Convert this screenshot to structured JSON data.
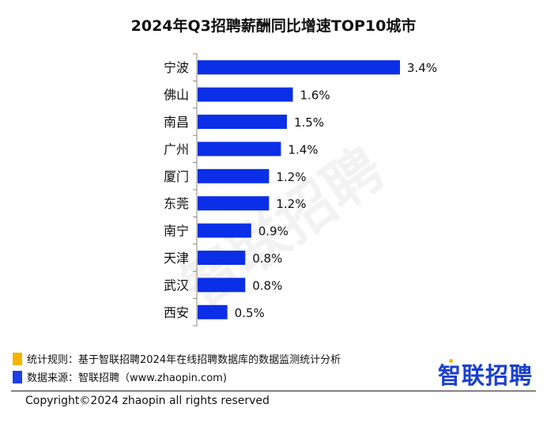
{
  "chart_data": {
    "type": "bar",
    "orientation": "horizontal",
    "title": "2024年Q3招聘薪酬同比增速TOP10城市",
    "categories": [
      "宁波",
      "佛山",
      "南昌",
      "广州",
      "厦门",
      "东莞",
      "南宁",
      "天津",
      "武汉",
      "西安"
    ],
    "values": [
      3.4,
      1.6,
      1.5,
      1.4,
      1.2,
      1.2,
      0.9,
      0.8,
      0.8,
      0.5
    ],
    "value_labels": [
      "3.4%",
      "1.6%",
      "1.5%",
      "1.4%",
      "1.2%",
      "1.2%",
      "0.9%",
      "0.8%",
      "0.8%",
      "0.5%"
    ],
    "unit": "%",
    "xlim": [
      0,
      3.4
    ],
    "grid": false,
    "bar_color": "#0b2fe6"
  },
  "watermark": "智联招聘",
  "footer": {
    "rule_label": "统计规则：基于智联招聘2024年在线招聘数据库的数据监测统计分析",
    "source_label": "数据来源：智联招聘（www.zhaopin.com)",
    "rule_color": "#f5b400",
    "source_color": "#1f3de8",
    "logo": "智联招聘",
    "copyright": "Copyright©2024 zhaopin all rights reserved"
  }
}
